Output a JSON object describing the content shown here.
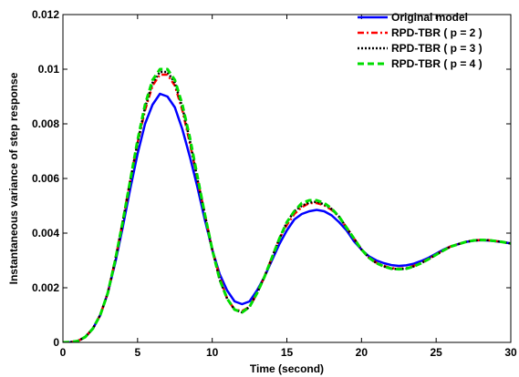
{
  "chart_data": {
    "type": "line",
    "title": "",
    "xlabel": "Time (second)",
    "ylabel": "Instantaneous variance of step response",
    "xlim": [
      0,
      30
    ],
    "ylim": [
      0,
      0.012
    ],
    "x_ticks": [
      0,
      5,
      10,
      15,
      20,
      25,
      30
    ],
    "y_ticks": [
      0,
      0.002,
      0.004,
      0.006,
      0.008,
      0.01,
      0.012
    ],
    "x_tick_labels": [
      "0",
      "5",
      "10",
      "15",
      "20",
      "25",
      "30"
    ],
    "y_tick_labels": [
      "0",
      "0.002",
      "0.004",
      "0.006",
      "0.008",
      "0.01",
      "0.012"
    ],
    "grid": false,
    "legend_position": "top-right",
    "series": [
      {
        "name": "Original model",
        "color": "#0000ff",
        "style": "solid",
        "x": [
          0,
          0.5,
          1,
          1.5,
          2,
          2.5,
          3,
          3.5,
          4,
          4.5,
          5,
          5.5,
          6,
          6.5,
          7,
          7.5,
          8,
          8.5,
          9,
          9.5,
          10,
          10.5,
          11,
          11.5,
          12,
          12.5,
          13,
          13.5,
          14,
          14.5,
          15,
          15.5,
          16,
          16.5,
          17,
          17.5,
          18,
          18.5,
          19,
          19.5,
          20,
          20.5,
          21,
          21.5,
          22,
          22.5,
          23,
          23.5,
          24,
          24.5,
          25,
          25.5,
          26,
          26.5,
          27,
          27.5,
          28,
          28.5,
          29,
          29.5,
          30
        ],
        "y": [
          0,
          1e-05,
          5e-05,
          0.0002,
          0.0005,
          0.001,
          0.0018,
          0.0029,
          0.0042,
          0.0056,
          0.0069,
          0.008,
          0.0087,
          0.0091,
          0.009,
          0.0086,
          0.0078,
          0.0068,
          0.0057,
          0.0045,
          0.0034,
          0.0025,
          0.0019,
          0.0015,
          0.0014,
          0.0015,
          0.0019,
          0.0024,
          0.003,
          0.0036,
          0.0041,
          0.0045,
          0.0047,
          0.0048,
          0.00485,
          0.0048,
          0.00465,
          0.0044,
          0.0041,
          0.0037,
          0.0034,
          0.00315,
          0.003,
          0.0029,
          0.00283,
          0.0028,
          0.00282,
          0.00288,
          0.00298,
          0.0031,
          0.00325,
          0.0034,
          0.00352,
          0.0036,
          0.00368,
          0.00372,
          0.00374,
          0.00373,
          0.0037,
          0.00367,
          0.00362
        ]
      },
      {
        "name": "RPD-TBR ( p = 2 )",
        "color": "#ff0000",
        "style": "dashdot",
        "x": [
          0,
          0.5,
          1,
          1.5,
          2,
          2.5,
          3,
          3.5,
          4,
          4.5,
          5,
          5.5,
          6,
          6.5,
          7,
          7.5,
          8,
          8.5,
          9,
          9.5,
          10,
          10.5,
          11,
          11.5,
          12,
          12.5,
          13,
          13.5,
          14,
          14.5,
          15,
          15.5,
          16,
          16.5,
          17,
          17.5,
          18,
          18.5,
          19,
          19.5,
          20,
          20.5,
          21,
          21.5,
          22,
          22.5,
          23,
          23.5,
          24,
          24.5,
          25,
          25.5,
          26,
          26.5,
          27,
          27.5,
          28,
          28.5,
          29,
          29.5,
          30
        ],
        "y": [
          0,
          1e-05,
          5e-05,
          0.0002,
          0.0005,
          0.001,
          0.0018,
          0.003,
          0.0044,
          0.0059,
          0.0073,
          0.0085,
          0.0094,
          0.0098,
          0.0098,
          0.0094,
          0.0085,
          0.0073,
          0.006,
          0.0047,
          0.0034,
          0.0024,
          0.0016,
          0.0012,
          0.00115,
          0.0013,
          0.0018,
          0.0024,
          0.0031,
          0.0038,
          0.0043,
          0.0047,
          0.00495,
          0.0051,
          0.0051,
          0.00502,
          0.00485,
          0.0046,
          0.0042,
          0.0038,
          0.0034,
          0.0031,
          0.00292,
          0.0028,
          0.00272,
          0.0027,
          0.00272,
          0.0028,
          0.00292,
          0.00306,
          0.00322,
          0.00338,
          0.00352,
          0.0036,
          0.00368,
          0.00373,
          0.00375,
          0.00374,
          0.00371,
          0.00367,
          0.00362
        ]
      },
      {
        "name": "RPD-TBR ( p = 3 )",
        "color": "#000000",
        "style": "dotted",
        "x": [
          0,
          0.5,
          1,
          1.5,
          2,
          2.5,
          3,
          3.5,
          4,
          4.5,
          5,
          5.5,
          6,
          6.5,
          7,
          7.5,
          8,
          8.5,
          9,
          9.5,
          10,
          10.5,
          11,
          11.5,
          12,
          12.5,
          13,
          13.5,
          14,
          14.5,
          15,
          15.5,
          16,
          16.5,
          17,
          17.5,
          18,
          18.5,
          19,
          19.5,
          20,
          20.5,
          21,
          21.5,
          22,
          22.5,
          23,
          23.5,
          24,
          24.5,
          25,
          25.5,
          26,
          26.5,
          27,
          27.5,
          28,
          28.5,
          29,
          29.5,
          30
        ],
        "y": [
          0,
          1e-05,
          5e-05,
          0.0002,
          0.0005,
          0.001,
          0.0018,
          0.003,
          0.0044,
          0.0059,
          0.0073,
          0.0086,
          0.0095,
          0.0099,
          0.0099,
          0.0095,
          0.0086,
          0.0074,
          0.006,
          0.0047,
          0.0034,
          0.0023,
          0.0016,
          0.0012,
          0.0011,
          0.0013,
          0.0018,
          0.0024,
          0.0031,
          0.0038,
          0.0044,
          0.0048,
          0.005,
          0.00512,
          0.00515,
          0.00505,
          0.00488,
          0.0046,
          0.0042,
          0.0038,
          0.0034,
          0.0031,
          0.0029,
          0.00278,
          0.0027,
          0.00268,
          0.0027,
          0.00278,
          0.0029,
          0.00305,
          0.00321,
          0.00337,
          0.00351,
          0.0036,
          0.00368,
          0.00373,
          0.00375,
          0.00374,
          0.00371,
          0.00367,
          0.00362
        ]
      },
      {
        "name": "RPD-TBR ( p = 4 )",
        "color": "#00dd00",
        "style": "dashed",
        "x": [
          0,
          0.5,
          1,
          1.5,
          2,
          2.5,
          3,
          3.5,
          4,
          4.5,
          5,
          5.5,
          6,
          6.5,
          7,
          7.5,
          8,
          8.5,
          9,
          9.5,
          10,
          10.5,
          11,
          11.5,
          12,
          12.5,
          13,
          13.5,
          14,
          14.5,
          15,
          15.5,
          16,
          16.5,
          17,
          17.5,
          18,
          18.5,
          19,
          19.5,
          20,
          20.5,
          21,
          21.5,
          22,
          22.5,
          23,
          23.5,
          24,
          24.5,
          25,
          25.5,
          26,
          26.5,
          27,
          27.5,
          28,
          28.5,
          29,
          29.5,
          30
        ],
        "y": [
          0,
          1e-05,
          5e-05,
          0.0002,
          0.0005,
          0.001,
          0.0018,
          0.003,
          0.0044,
          0.0059,
          0.0074,
          0.0087,
          0.0096,
          0.01,
          0.01,
          0.0096,
          0.0087,
          0.0075,
          0.0061,
          0.0047,
          0.0034,
          0.0023,
          0.0016,
          0.0012,
          0.0011,
          0.0013,
          0.0018,
          0.0024,
          0.0031,
          0.0038,
          0.0044,
          0.0048,
          0.0051,
          0.0052,
          0.0052,
          0.0051,
          0.0049,
          0.0046,
          0.0042,
          0.0038,
          0.0034,
          0.0031,
          0.0029,
          0.00278,
          0.0027,
          0.00268,
          0.0027,
          0.00278,
          0.0029,
          0.00305,
          0.00321,
          0.00337,
          0.00351,
          0.0036,
          0.00368,
          0.00373,
          0.00375,
          0.00374,
          0.00371,
          0.00367,
          0.00362
        ]
      }
    ]
  }
}
